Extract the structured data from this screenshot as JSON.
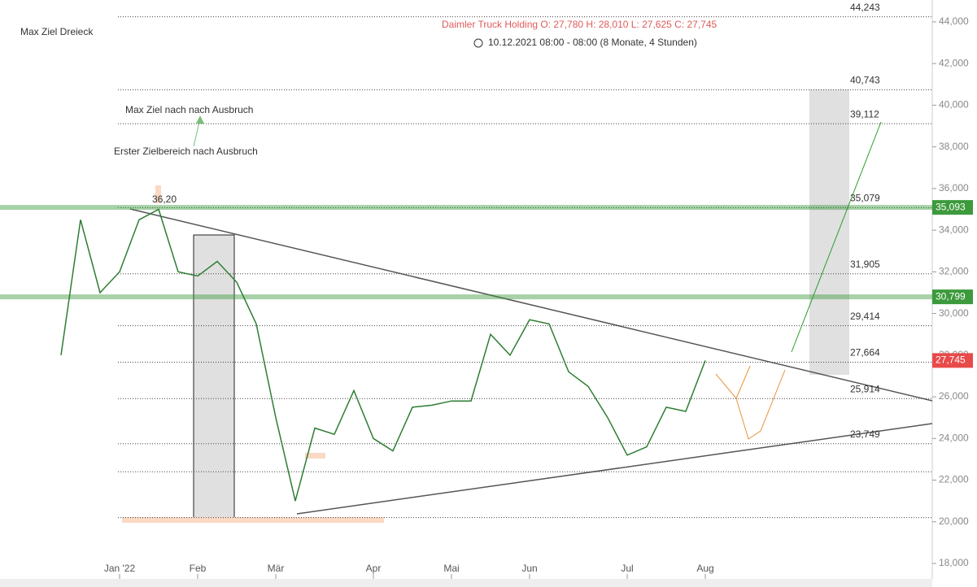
{
  "chart_data": {
    "type": "line",
    "title": "Daimler Truck Holding O: 27,780  H: 28,010  L: 27,625  C: 27,745",
    "subtitle": "10.12.2021 08:00 - 08:00   (8 Monate, 4 Stunden)",
    "annotations": [
      "Max Ziel Dreieck",
      "Max Ziel nach nach Ausbruch",
      "Erster Zielbereich nach Ausbruch",
      "36,20"
    ],
    "categories": [
      null,
      null,
      null,
      "Jan '22",
      null,
      null,
      null,
      "Feb",
      null,
      null,
      null,
      "Mär",
      null,
      null,
      null,
      null,
      "Apr",
      null,
      null,
      null,
      "Mai",
      null,
      null,
      null,
      "Jun",
      null,
      null,
      null,
      null,
      "Jul",
      null,
      null,
      null,
      "Aug"
    ],
    "series": [
      {
        "name": "Daimler Truck Holding",
        "color": "#2e7d32",
        "values": [
          28.0,
          34.5,
          31.0,
          32.0,
          34.5,
          35.0,
          32.0,
          31.8,
          32.5,
          31.5,
          29.5,
          25.0,
          21.0,
          24.5,
          24.2,
          26.3,
          24.0,
          23.4,
          25.5,
          25.6,
          25.8,
          25.8,
          29.0,
          28.0,
          29.7,
          29.5,
          27.2,
          26.5,
          25.0,
          23.2,
          23.6,
          25.5,
          25.3,
          27.745
        ]
      }
    ],
    "ylim": [
      17.26,
      45.05
    ],
    "yticks": [
      {
        "value": 18,
        "label": "18,000"
      },
      {
        "value": 20,
        "label": "20,000"
      },
      {
        "value": 22,
        "label": "22,000"
      },
      {
        "value": 24,
        "label": "24,000"
      },
      {
        "value": 26,
        "label": "26,000"
      },
      {
        "value": 28,
        "label": "28,000"
      },
      {
        "value": 30,
        "label": "30,000"
      },
      {
        "value": 32,
        "label": "32,000"
      },
      {
        "value": 34,
        "label": "34,000"
      },
      {
        "value": 36,
        "label": "36,000"
      },
      {
        "value": 38,
        "label": "38,000"
      },
      {
        "value": 40,
        "label": "40,000"
      },
      {
        "value": 42,
        "label": "42,000"
      },
      {
        "value": 44,
        "label": "44,000"
      }
    ],
    "levels": [
      {
        "value": 44.243,
        "label": "44,243"
      },
      {
        "value": 40.743,
        "label": "40,743"
      },
      {
        "value": 39.112,
        "label": "39,112"
      },
      {
        "value": 35.079,
        "label": "35,079"
      },
      {
        "value": 31.905,
        "label": "31,905"
      },
      {
        "value": 29.414,
        "label": "29,414"
      },
      {
        "value": 27.664,
        "label": "27,664"
      },
      {
        "value": 25.914,
        "label": "25,914"
      },
      {
        "value": 23.749,
        "label": "23,749"
      },
      {
        "value": 22.4
      },
      {
        "value": 20.2
      }
    ],
    "zones": [
      {
        "value": 35.093,
        "label": "35,093",
        "color": "#3c9a3c"
      },
      {
        "value": 30.799,
        "label": "30,799",
        "color": "#3c9a3c"
      }
    ],
    "last_price": {
      "value": 27.745,
      "label": "27,745",
      "color": "#e84a4a"
    }
  }
}
